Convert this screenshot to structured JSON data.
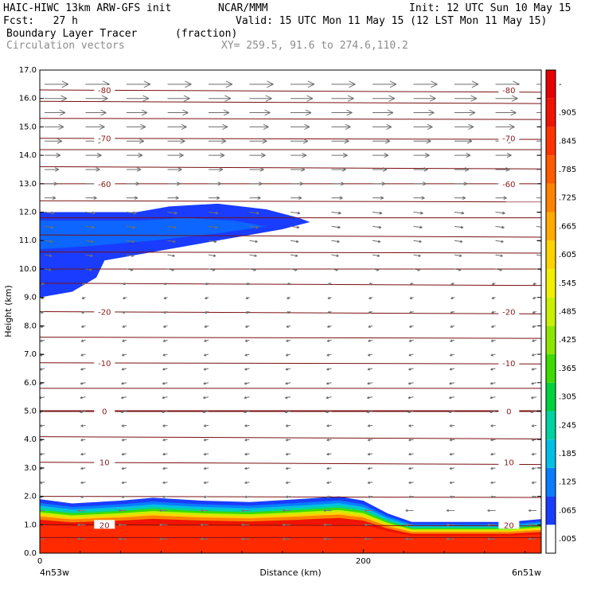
{
  "header": {
    "title_left": "HAIC-HIWC 13km ARW-GFS init",
    "org": "NCAR/MMM",
    "init": "Init: 12 UTC Sun 10 May 15",
    "fcst": "Fcst:   27 h",
    "valid": "Valid: 15 UTC Mon 11 May 15 (12 LST Mon 11 May 15)",
    "field": "Boundary Layer Tracer",
    "field_unit": "(fraction)",
    "overlay": "Circulation vectors",
    "xy": "XY= 259.5, 91.6 to 274.6,110.2"
  },
  "chart_data": {
    "type": "cross-section",
    "ylabel": "Height (km)",
    "xlabel": "Distance (km)",
    "ylim": [
      0,
      17
    ],
    "yticks": [
      "0.0",
      "1.0",
      "2.0",
      "3.0",
      "4.0",
      "5.0",
      "6.0",
      "7.0",
      "8.0",
      "9.0",
      "10.0",
      "11.0",
      "12.0",
      "13.0",
      "14.0",
      "15.0",
      "16.0",
      "17.0"
    ],
    "xlim": [
      0,
      310
    ],
    "xticks": [
      {
        "x": 0,
        "label": "0"
      },
      {
        "x": 200,
        "label": "200"
      }
    ],
    "endpoint_left": "4n53w",
    "endpoint_right": "6n51w",
    "colorbar": {
      "labels": [
        ".005",
        ".065",
        ".125",
        ".185",
        ".245",
        ".305",
        ".365",
        ".425",
        ".485",
        ".545",
        ".605",
        ".665",
        ".725",
        ".785",
        ".845",
        ".905",
        "-"
      ],
      "colors": [
        "#ffffff",
        "#1a3cff",
        "#0a7dff",
        "#00bfe6",
        "#00d2a0",
        "#00d23c",
        "#3cdc00",
        "#8ce600",
        "#c8f000",
        "#f0f000",
        "#ffd200",
        "#ffaa00",
        "#ff8200",
        "#ff5a00",
        "#ff3200",
        "#f01400",
        "#e60000"
      ]
    },
    "temperature_contours": [
      {
        "level": -80,
        "z": 16.3,
        "label": "-80"
      },
      {
        "level": -70,
        "z": 14.6,
        "label": "-70"
      },
      {
        "level": -60,
        "z": 13.0,
        "label": "-60"
      },
      {
        "level": -20,
        "z": 8.5,
        "label": "-20"
      },
      {
        "level": -10,
        "z": 6.7,
        "label": "-10"
      },
      {
        "level": 0,
        "z": 5.0,
        "label": "0"
      },
      {
        "level": 10,
        "z": 3.2,
        "label": "10"
      },
      {
        "level": 20,
        "z": 1.0,
        "label": "20"
      }
    ],
    "extra_contour_heights": [
      17.1,
      15.9,
      15.3,
      14.2,
      13.6,
      12.4,
      11.8,
      11.2,
      10.6,
      10.0,
      9.5,
      7.6,
      5.8,
      4.1,
      2.0,
      0.55
    ],
    "boundary_layer_top_km": [
      [
        0,
        1.9
      ],
      [
        20,
        1.75
      ],
      [
        50,
        1.85
      ],
      [
        70,
        1.95
      ],
      [
        100,
        1.85
      ],
      [
        130,
        1.8
      ],
      [
        160,
        1.9
      ],
      [
        185,
        2.0
      ],
      [
        200,
        1.85
      ],
      [
        215,
        1.4
      ],
      [
        230,
        1.1
      ],
      [
        260,
        1.1
      ],
      [
        290,
        1.1
      ],
      [
        310,
        1.2
      ]
    ],
    "upper_plume_outline": [
      [
        0,
        12.0
      ],
      [
        60,
        12.0
      ],
      [
        80,
        12.2
      ],
      [
        110,
        12.3
      ],
      [
        140,
        12.1
      ],
      [
        160,
        11.8
      ],
      [
        167,
        11.65
      ],
      [
        150,
        11.4
      ],
      [
        120,
        11.1
      ],
      [
        90,
        10.8
      ],
      [
        60,
        10.5
      ],
      [
        40,
        10.3
      ],
      [
        35,
        9.7
      ],
      [
        20,
        9.2
      ],
      [
        0,
        9.0
      ]
    ]
  }
}
